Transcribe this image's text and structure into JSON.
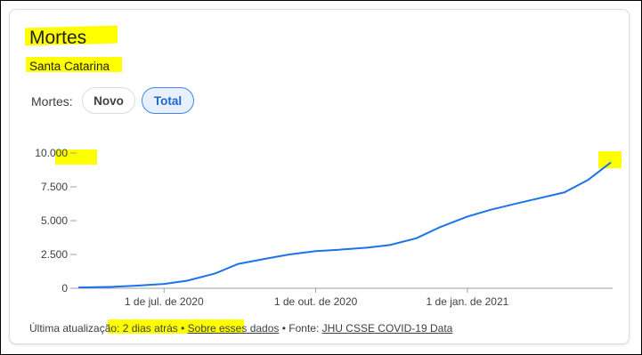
{
  "card": {
    "title": "Mortes",
    "subtitle": "Santa Catarina"
  },
  "filter": {
    "label": "Mortes:",
    "options": [
      "Novo",
      "Total"
    ],
    "selected": "Total"
  },
  "footer": {
    "updated_prefix": "Última atualização: ",
    "updated_value": "2 dias atrás",
    "sep1": " • ",
    "about_link_pre": "Sobre",
    "about_link_post": " esses dados",
    "sep2": " • Fonte: ",
    "source_link": "JHU CSSE COVID-19 Data"
  },
  "colors": {
    "line": "#1a73e8",
    "highlight": "#ffff00",
    "chip_selected_bg": "#e8f0fe",
    "chip_selected_text": "#1967d2"
  },
  "chart_data": {
    "type": "line",
    "ylim": [
      0,
      10000
    ],
    "ytick_labels": [
      "10.000",
      "7.500",
      "5.000",
      "2.500",
      "0"
    ],
    "ytick_values": [
      10000,
      7500,
      5000,
      2500,
      0
    ],
    "xtick_labels": [
      "1 de jul. de 2020",
      "1 de out. de 2020",
      "1 de jan. de 2021"
    ],
    "xtick_dates": [
      "2020-07-01",
      "2020-10-01",
      "2021-01-01"
    ],
    "x_range": [
      "2020-05-10",
      "2021-03-29"
    ],
    "series": [
      {
        "points": [
          [
            "2020-05-10",
            60
          ],
          [
            "2020-06-01",
            110
          ],
          [
            "2020-06-15",
            200
          ],
          [
            "2020-07-01",
            320
          ],
          [
            "2020-07-15",
            560
          ],
          [
            "2020-08-01",
            1100
          ],
          [
            "2020-08-15",
            1800
          ],
          [
            "2020-09-01",
            2200
          ],
          [
            "2020-09-15",
            2500
          ],
          [
            "2020-10-01",
            2750
          ],
          [
            "2020-10-15",
            2850
          ],
          [
            "2020-11-01",
            3000
          ],
          [
            "2020-11-15",
            3200
          ],
          [
            "2020-12-01",
            3700
          ],
          [
            "2020-12-15",
            4500
          ],
          [
            "2021-01-01",
            5300
          ],
          [
            "2021-01-15",
            5800
          ],
          [
            "2021-02-01",
            6300
          ],
          [
            "2021-02-15",
            6700
          ],
          [
            "2021-03-01",
            7100
          ],
          [
            "2021-03-15",
            8000
          ],
          [
            "2021-03-29",
            9300
          ]
        ]
      }
    ]
  }
}
